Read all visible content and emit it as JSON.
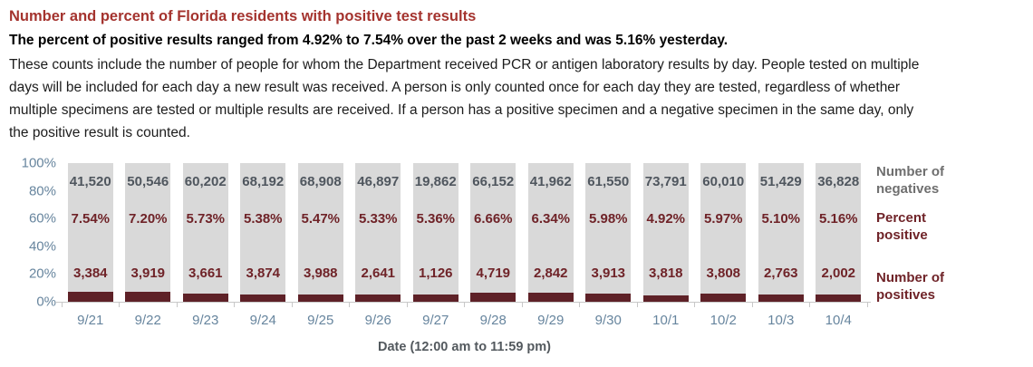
{
  "page": {
    "title": "Number and percent of Florida residents with positive test results",
    "subtitle": "The percent of positive results ranged from 4.92% to 7.54% over the past 2 weeks and was 5.16% yesterday.",
    "description": "These counts include the number of people for whom the Department received PCR or antigen laboratory results by day. People tested on multiple days will be included for each day a new result was received. A person is only counted once for each day they are tested, regardless of whether multiple specimens are tested or multiple results are received. If a person has a positive specimen and a negative specimen in the same day, only the positive result is counted."
  },
  "chart_data": {
    "type": "bar",
    "subtype": "stacked-percent",
    "categories": [
      "9/21",
      "9/22",
      "9/23",
      "9/24",
      "9/25",
      "9/26",
      "9/27",
      "9/28",
      "9/29",
      "9/30",
      "10/1",
      "10/2",
      "10/3",
      "10/4"
    ],
    "series": [
      {
        "name": "Number of negatives",
        "values": [
          41520,
          50546,
          60202,
          68192,
          68908,
          46897,
          19862,
          66152,
          41962,
          61550,
          73791,
          60010,
          51429,
          36828
        ]
      },
      {
        "name": "Percent positive",
        "values": [
          7.54,
          7.2,
          5.73,
          5.38,
          5.47,
          5.33,
          5.36,
          6.66,
          6.34,
          5.98,
          4.92,
          5.97,
          5.1,
          5.16
        ]
      },
      {
        "name": "Number of positives",
        "values": [
          3384,
          3919,
          3661,
          3874,
          3988,
          2641,
          1126,
          4719,
          2842,
          3913,
          3818,
          3808,
          2763,
          2002
        ]
      }
    ],
    "labels": {
      "negatives": [
        "41,520",
        "50,546",
        "60,202",
        "68,192",
        "68,908",
        "46,897",
        "19,862",
        "66,152",
        "41,962",
        "61,550",
        "73,791",
        "60,010",
        "51,429",
        "36,828"
      ],
      "percents": [
        "7.54%",
        "7.20%",
        "5.73%",
        "5.38%",
        "5.47%",
        "5.33%",
        "5.36%",
        "6.66%",
        "6.34%",
        "5.98%",
        "4.92%",
        "5.97%",
        "5.10%",
        "5.16%"
      ],
      "positives": [
        "3,384",
        "3,919",
        "3,661",
        "3,874",
        "3,988",
        "2,641",
        "1,126",
        "4,719",
        "2,842",
        "3,913",
        "3,818",
        "3,808",
        "2,763",
        "2,002"
      ]
    },
    "y_ticks": [
      "100%",
      "80%",
      "60%",
      "40%",
      "20%",
      "0%"
    ],
    "ylim": [
      0,
      100
    ],
    "grid": false,
    "xlabel": "Date (12:00 am to 11:59 pm)",
    "legend_position": "right",
    "legend": [
      "Number of negatives",
      "Percent positive",
      "Number of positives"
    ],
    "colors": {
      "title_red": "#a4332e",
      "bar_gray": "#d9d9d9",
      "bar_maroon": "#5e2127",
      "red_text": "#6f2328",
      "negatives_text": "#4f565e",
      "axis_blue": "#67859e",
      "legend_gray": "#6f6f6f",
      "axis_title_gray": "#53595e",
      "axis_line": "#c8c8c8"
    }
  }
}
